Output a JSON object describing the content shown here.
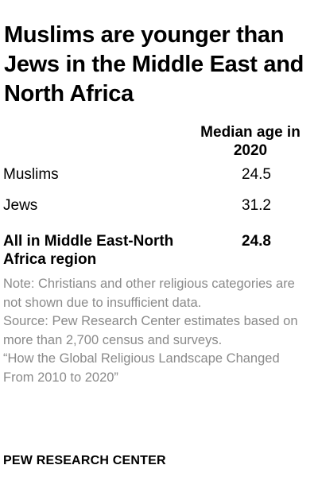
{
  "title": "Muslims are younger than Jews in the Middle East and North Africa",
  "chart_data": {
    "type": "table",
    "column_header": "Median age in 2020",
    "rows": [
      {
        "label": "Muslims",
        "value": "24.5"
      },
      {
        "label": "Jews",
        "value": "31.2"
      }
    ],
    "total": {
      "label": "All in Middle East-North Africa region",
      "value": "24.8"
    }
  },
  "notes": {
    "note": "Note: Christians and other religious categories are not shown due to insufficient data.",
    "source": "Source: Pew Research Center estimates based on more than 2,700 census and surveys.",
    "report": "“How the Global Religious Landscape Changed From 2010 to 2020”"
  },
  "brand": "PEW RESEARCH CENTER"
}
